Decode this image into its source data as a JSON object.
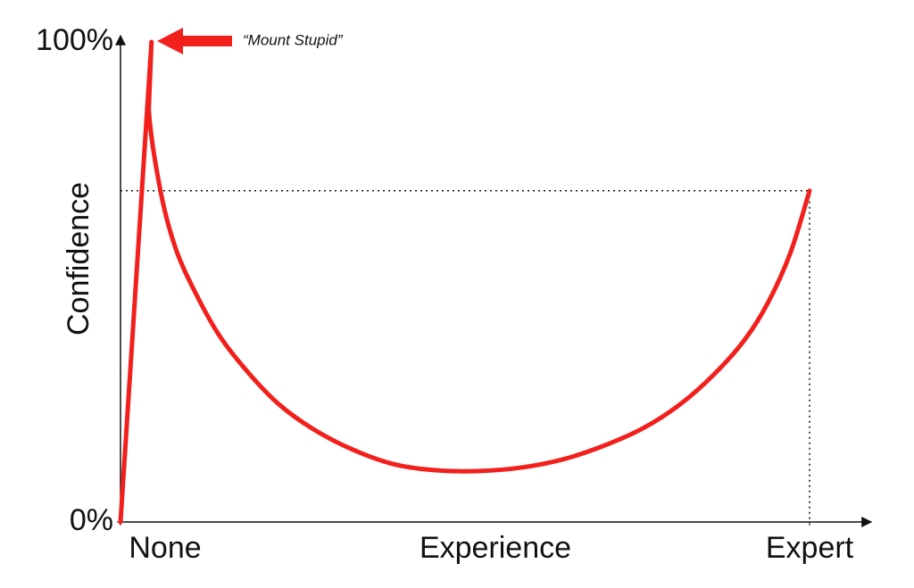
{
  "chart_data": {
    "type": "line",
    "x_label": "Experience",
    "y_label": "Confidence",
    "annotation": "“Mount Stupid”",
    "xlim": [
      0,
      100
    ],
    "xticks": [
      {
        "value": 0,
        "label": "None"
      },
      {
        "value": 100,
        "label": "Expert"
      }
    ],
    "ylim": [
      0,
      100
    ],
    "yticks": [
      {
        "value": 0,
        "label": "0%"
      },
      {
        "value": 100,
        "label": "100%"
      }
    ],
    "reference_lines": {
      "x": 100,
      "y": 69
    },
    "series": [
      {
        "color": "#f2201c",
        "x": [
          0,
          4.5,
          4.1,
          5.8,
          8.0,
          11.0,
          14.5,
          18.8,
          23.0,
          27.8,
          33.5,
          39.5,
          45.5,
          51.8,
          58.0,
          64.1,
          70.0,
          75.8,
          81.2,
          86.1,
          90.5,
          93.9,
          97.2,
          100
        ],
        "values": [
          0,
          100,
          86,
          69,
          57,
          47.4,
          38.5,
          30.7,
          24.5,
          19.5,
          15.2,
          12.1,
          10.8,
          10.6,
          11.3,
          13,
          15.8,
          19.5,
          24.5,
          30.7,
          37.8,
          45.5,
          56,
          69
        ]
      }
    ]
  }
}
